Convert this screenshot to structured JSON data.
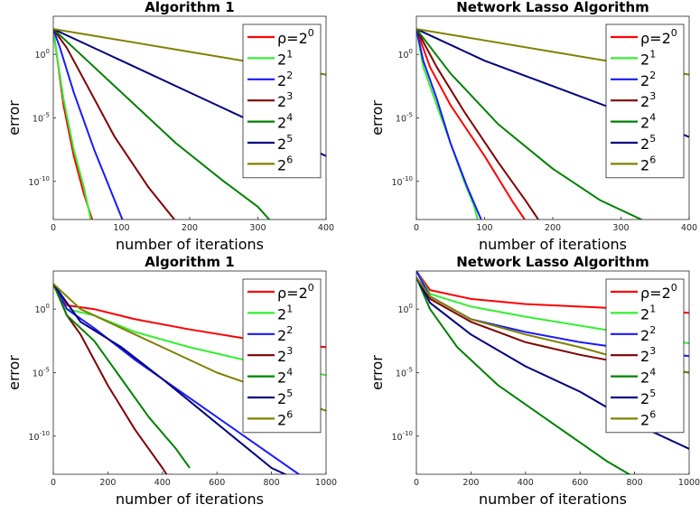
{
  "chart_data": [
    {
      "type": "line",
      "title": "Algorithm 1",
      "xlabel": "number of iterations",
      "ylabel": "error",
      "xlim": [
        0,
        400
      ],
      "ylim_log10": [
        -13,
        3
      ],
      "yscale": "log",
      "xticks": [
        "0",
        "100",
        "200",
        "300",
        "400"
      ],
      "yticks": [
        {
          "base": "10",
          "exp": "0",
          "value": 0
        },
        {
          "base": "10",
          "exp": "-5",
          "value": -5
        },
        {
          "base": "10",
          "exp": "-10",
          "value": -10
        }
      ],
      "legend_position": "top-right",
      "series": [
        {
          "name_base": "ρ=2",
          "name_exp": "0",
          "color": "#ff0000",
          "x": [
            0,
            5,
            15,
            30,
            45,
            60
          ],
          "log10y": [
            2,
            0,
            -4,
            -8,
            -11,
            -13.5
          ]
        },
        {
          "name_base": "2",
          "name_exp": "1",
          "color": "#33ee33",
          "x": [
            0,
            5,
            15,
            30,
            45,
            57
          ],
          "log10y": [
            2,
            0,
            -3.5,
            -7.5,
            -10.5,
            -13.5
          ]
        },
        {
          "name_base": "2",
          "name_exp": "2",
          "color": "#1a1aff",
          "x": [
            0,
            10,
            30,
            60,
            90,
            105
          ],
          "log10y": [
            2,
            0.5,
            -3,
            -7.5,
            -11.5,
            -13.5
          ]
        },
        {
          "name_base": "2",
          "name_exp": "3",
          "color": "#7f0000",
          "x": [
            0,
            20,
            50,
            90,
            140,
            185
          ],
          "log10y": [
            2,
            0.5,
            -2.5,
            -6.5,
            -10.5,
            -13.5
          ]
        },
        {
          "name_base": "2",
          "name_exp": "4",
          "color": "#008000",
          "x": [
            0,
            40,
            100,
            180,
            250,
            300,
            325
          ],
          "log10y": [
            2,
            0,
            -3,
            -7,
            -10,
            -12,
            -13.5
          ]
        },
        {
          "name_base": "2",
          "name_exp": "5",
          "color": "#00007f",
          "x": [
            0,
            100,
            200,
            300,
            400
          ],
          "log10y": [
            2,
            -0.5,
            -3,
            -5.5,
            -8
          ]
        },
        {
          "name_base": "2",
          "name_exp": "6",
          "color": "#808000",
          "x": [
            0,
            100,
            200,
            300,
            400
          ],
          "log10y": [
            2,
            1.1,
            0.2,
            -0.7,
            -1.6
          ]
        }
      ]
    },
    {
      "type": "line",
      "title": "Network Lasso Algorithm",
      "xlabel": "number of iterations",
      "ylabel": "error",
      "xlim": [
        0,
        400
      ],
      "ylim_log10": [
        -13,
        3
      ],
      "yscale": "log",
      "xticks": [
        "0",
        "100",
        "200",
        "300",
        "400"
      ],
      "yticks": [
        {
          "base": "10",
          "exp": "0",
          "value": 0
        },
        {
          "base": "10",
          "exp": "-5",
          "value": -5
        },
        {
          "base": "10",
          "exp": "-10",
          "value": -10
        }
      ],
      "legend_position": "top-right",
      "series": [
        {
          "name_base": "ρ=2",
          "name_exp": "0",
          "color": "#ff0000",
          "x": [
            0,
            20,
            50,
            100,
            140,
            165
          ],
          "log10y": [
            2,
            -1,
            -4,
            -8,
            -11.5,
            -13.5
          ]
        },
        {
          "name_base": "2",
          "name_exp": "1",
          "color": "#33ee33",
          "x": [
            0,
            10,
            30,
            50,
            70,
            85,
            92
          ],
          "log10y": [
            2,
            -1,
            -4,
            -7,
            -10,
            -12,
            -13.5
          ]
        },
        {
          "name_base": "2",
          "name_exp": "2",
          "color": "#1a1aff",
          "x": [
            0,
            10,
            30,
            50,
            75,
            95,
            98
          ],
          "log10y": [
            2,
            -0.5,
            -3.5,
            -7,
            -10.5,
            -13,
            -13.5
          ]
        },
        {
          "name_base": "2",
          "name_exp": "3",
          "color": "#7f0000",
          "x": [
            0,
            30,
            70,
            120,
            160,
            185
          ],
          "log10y": [
            2,
            -1,
            -4.5,
            -8.5,
            -11.5,
            -13.5
          ]
        },
        {
          "name_base": "2",
          "name_exp": "4",
          "color": "#008000",
          "x": [
            0,
            50,
            120,
            200,
            270,
            330,
            345
          ],
          "log10y": [
            2,
            -1.5,
            -5.5,
            -9,
            -11.5,
            -13,
            -13.5
          ]
        },
        {
          "name_base": "2",
          "name_exp": "5",
          "color": "#00007f",
          "x": [
            0,
            100,
            200,
            300,
            400
          ],
          "log10y": [
            2,
            -0.5,
            -2.5,
            -4.5,
            -6.5
          ]
        },
        {
          "name_base": "2",
          "name_exp": "6",
          "color": "#808000",
          "x": [
            0,
            100,
            200,
            300,
            400
          ],
          "log10y": [
            2,
            1.1,
            0.2,
            -0.7,
            -1.6
          ]
        }
      ]
    },
    {
      "type": "line",
      "title": "Algorithm 1",
      "xlabel": "number of iterations",
      "ylabel": "error",
      "xlim": [
        0,
        1000
      ],
      "ylim_log10": [
        -13,
        3
      ],
      "yscale": "log",
      "xticks": [
        "0",
        "200",
        "400",
        "600",
        "800",
        "1000"
      ],
      "yticks": [
        {
          "base": "10",
          "exp": "0",
          "value": 0
        },
        {
          "base": "10",
          "exp": "-5",
          "value": -5
        },
        {
          "base": "10",
          "exp": "-10",
          "value": -10
        }
      ],
      "legend_position": "top-right",
      "series": [
        {
          "name_base": "ρ=2",
          "name_exp": "0",
          "color": "#ff0000",
          "x": [
            0,
            50,
            150,
            300,
            500,
            700,
            1000
          ],
          "log10y": [
            2,
            0.3,
            0,
            -0.8,
            -1.6,
            -2.3,
            -3
          ]
        },
        {
          "name_base": "2",
          "name_exp": "1",
          "color": "#33ee33",
          "x": [
            0,
            50,
            150,
            300,
            500,
            700,
            1000
          ],
          "log10y": [
            2,
            0,
            -0.5,
            -1.8,
            -3,
            -4,
            -5.2
          ]
        },
        {
          "name_base": "2",
          "name_exp": "2",
          "color": "#1a1aff",
          "x": [
            0,
            50,
            150,
            300,
            500,
            700,
            900,
            930
          ],
          "log10y": [
            2,
            0,
            -1.5,
            -4,
            -7,
            -10,
            -13,
            -13.5
          ]
        },
        {
          "name_base": "2",
          "name_exp": "3",
          "color": "#7f0000",
          "x": [
            0,
            50,
            100,
            200,
            300,
            400,
            430
          ],
          "log10y": [
            2,
            -0.5,
            -2,
            -6,
            -9.5,
            -12.5,
            -13.5
          ]
        },
        {
          "name_base": "2",
          "name_exp": "4",
          "color": "#008000",
          "x": [
            0,
            50,
            150,
            250,
            350,
            450,
            500
          ],
          "log10y": [
            2,
            -0.5,
            -2.5,
            -5.5,
            -8.5,
            -11,
            -12.5
          ]
        },
        {
          "name_base": "2",
          "name_exp": "5",
          "color": "#00007f",
          "x": [
            0,
            100,
            250,
            400,
            600,
            800,
            900
          ],
          "log10y": [
            2,
            -1,
            -3,
            -5.5,
            -9,
            -12.5,
            -13.5
          ]
        },
        {
          "name_base": "2",
          "name_exp": "6",
          "color": "#808000",
          "x": [
            0,
            100,
            250,
            400,
            600,
            800,
            1000
          ],
          "log10y": [
            2,
            0,
            -1.5,
            -3,
            -5,
            -6.5,
            -8
          ]
        }
      ]
    },
    {
      "type": "line",
      "title": "Network Lasso Algorithm",
      "xlabel": "number of iterations",
      "ylabel": "error",
      "xlim": [
        0,
        1000
      ],
      "ylim_log10": [
        -13,
        3
      ],
      "yscale": "log",
      "xticks": [
        "0",
        "200",
        "400",
        "600",
        "800",
        "1000"
      ],
      "yticks": [
        {
          "base": "10",
          "exp": "0",
          "value": 0
        },
        {
          "base": "10",
          "exp": "-5",
          "value": -5
        },
        {
          "base": "10",
          "exp": "-10",
          "value": -10
        }
      ],
      "legend_position": "top-right",
      "series": [
        {
          "name_base": "ρ=2",
          "name_exp": "0",
          "color": "#ff0000",
          "x": [
            0,
            50,
            200,
            400,
            600,
            800,
            1000
          ],
          "log10y": [
            3,
            1.5,
            0.8,
            0.4,
            0.2,
            0,
            -0.3
          ]
        },
        {
          "name_base": "2",
          "name_exp": "1",
          "color": "#33ee33",
          "x": [
            0,
            50,
            200,
            400,
            600,
            800,
            1000
          ],
          "log10y": [
            3,
            1.2,
            0.2,
            -0.6,
            -1.3,
            -2,
            -2.7
          ]
        },
        {
          "name_base": "2",
          "name_exp": "2",
          "color": "#1a1aff",
          "x": [
            0,
            50,
            200,
            400,
            600,
            800,
            1000
          ],
          "log10y": [
            3,
            1,
            -0.8,
            -1.8,
            -2.6,
            -3.2,
            -3.7
          ]
        },
        {
          "name_base": "2",
          "name_exp": "3",
          "color": "#7f0000",
          "x": [
            0,
            50,
            200,
            400,
            600,
            800,
            1000
          ],
          "log10y": [
            2.5,
            0.8,
            -1,
            -2.6,
            -3.6,
            -4.4,
            -5
          ]
        },
        {
          "name_base": "2",
          "name_exp": "4",
          "color": "#008000",
          "x": [
            0,
            50,
            150,
            300,
            500,
            700,
            820
          ],
          "log10y": [
            2.5,
            0,
            -3,
            -6,
            -9,
            -12,
            -13.5
          ]
        },
        {
          "name_base": "2",
          "name_exp": "5",
          "color": "#00007f",
          "x": [
            0,
            50,
            200,
            400,
            600,
            800,
            1000
          ],
          "log10y": [
            2.5,
            0.5,
            -2,
            -4.5,
            -6.5,
            -9,
            -11
          ]
        },
        {
          "name_base": "2",
          "name_exp": "6",
          "color": "#808000",
          "x": [
            0,
            50,
            200,
            400,
            600,
            800,
            1000
          ],
          "log10y": [
            2.5,
            1,
            -0.8,
            -2,
            -3,
            -4.2,
            -5
          ]
        }
      ]
    }
  ]
}
